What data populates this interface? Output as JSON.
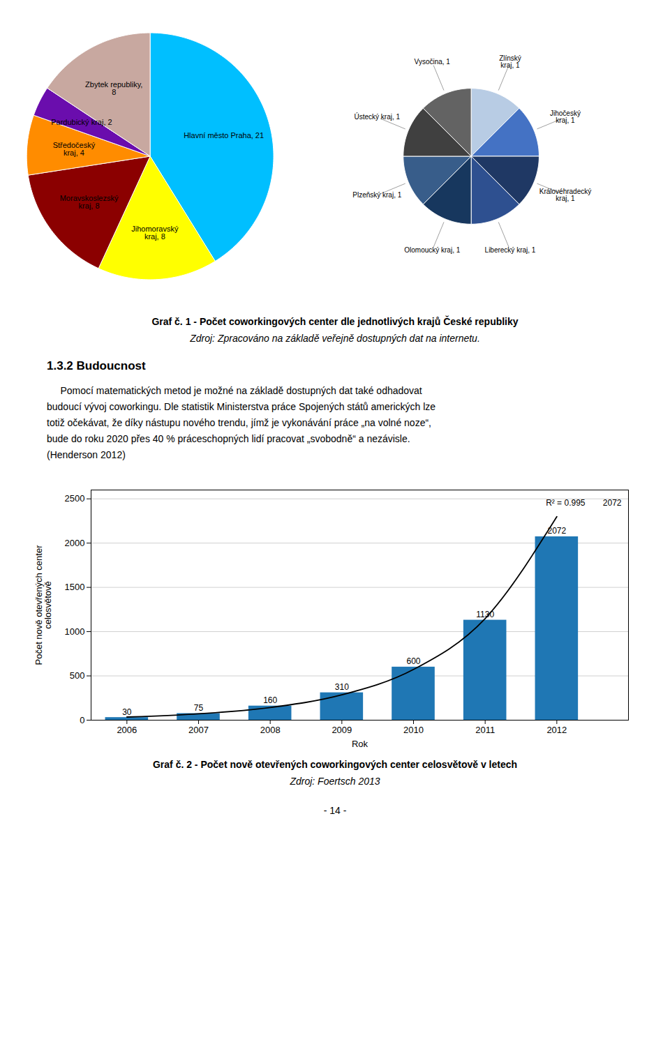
{
  "chart_data": [
    {
      "type": "pie",
      "title": "Graf č. 1 - Počet coworkingových center dle jednotlivých krajů České republiky",
      "caption": "Zdroj: Zpracováno na základě veřejně dostupných dat na internetu.",
      "categories": [
        "Hlavní město Praha, 21",
        "Jihomoravský\nkraj, 8",
        "Moravskoslezský\nkraj, 8",
        "Středočeský\nkraj, 4",
        "Pardubický kraj, 2",
        "Zbytek republiky,\n8"
      ],
      "values": [
        21,
        8,
        8,
        4,
        2,
        8
      ],
      "colors": [
        "#00BFFF",
        "#FFFF00",
        "#8B0000",
        "#FF8C00",
        "#6A0DAD",
        "#C8A8A0"
      ]
    },
    {
      "type": "pie",
      "categories": [
        "Zlínský\nkraj, 1",
        "Jihočeský\nkraj, 1",
        "Královéhradecký\nkraj, 1",
        "Liberecký kraj, 1",
        "Olomoucký kraj, 1",
        "Plzeňský kraj, 1",
        "Ústecký kraj, 1",
        "Vysočina, 1"
      ],
      "values": [
        1,
        1,
        1,
        1,
        1,
        1,
        1,
        1
      ],
      "colors": [
        "#B8CCE4",
        "#4472C4",
        "#1F3864",
        "#2E5090",
        "#17375E",
        "#385D8A",
        "#404040",
        "#636363"
      ]
    },
    {
      "type": "bar",
      "title": "Graf č. 2 - Počet nově otevřených coworkingových center celosvětově v letech",
      "caption": "Zdroj: Foertsch 2013",
      "x": [
        2006,
        2007,
        2008,
        2009,
        2010,
        2011,
        2012
      ],
      "values": [
        30,
        75,
        160,
        310,
        600,
        1130,
        2072
      ],
      "color": "#1F77B4",
      "trend": {
        "type": "line",
        "color": "#000000",
        "values": [
          35.6,
          71.3,
          142.8,
          286.1,
          573.0,
          1147.9,
          2299.3
        ]
      },
      "xlabel": "Rok",
      "ylabel": "Počet nově otevřených center\ncelosvětově",
      "xlim": [
        2005.5,
        2013
      ],
      "xticks": [
        2006,
        2007,
        2008,
        2009,
        2010,
        2011,
        2012
      ],
      "ylim": [
        0,
        2600
      ],
      "yticks": [
        0,
        500,
        1000,
        1500,
        2000,
        2500
      ],
      "grid": true,
      "data_labels": true,
      "annotations": [
        "R² = 0.995",
        "2072"
      ]
    }
  ],
  "section_header": "1.3.2  Budoucnost",
  "body": [
    "     Pomocí matematických metod je možné na základě dostupných dat také odhadovat",
    "budoucí vývoj coworkingu. Dle statistik Ministerstva práce Spojených států amerických lze",
    "totiž očekávat, že díky nástupu nového trendu, jímž je vykonávání práce „na volné noze“,",
    "bude do roku 2020 přes 40 % práceschopných lidí pracovat „svobodně“ a nezávisle.",
    "(Henderson 2012)"
  ],
  "page_number": "- 14 -"
}
